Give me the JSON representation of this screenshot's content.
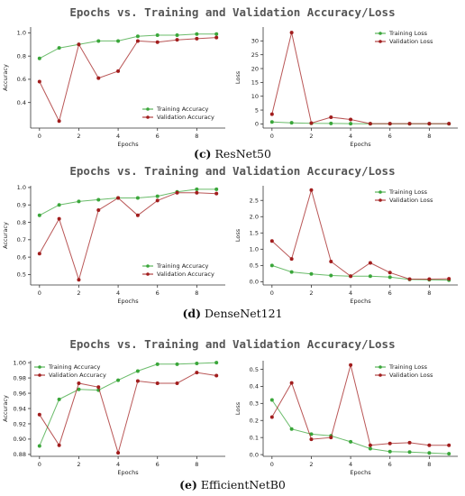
{
  "panels": [
    {
      "suptitle": "Epochs vs. Training and Validation Accuracy/Loss",
      "caption_letter": "(c)",
      "caption_text": "ResNet50"
    },
    {
      "suptitle": "Epochs vs. Training and Validation Accuracy/Loss",
      "caption_letter": "(d)",
      "caption_text": "DenseNet121"
    },
    {
      "suptitle": "Epochs vs. Training and Validation Accuracy/Loss",
      "caption_letter": "(e)",
      "caption_text": "EfficientNetB0"
    }
  ],
  "colors": {
    "training": "#3aa63a",
    "validation": "#a11d1d"
  },
  "chart_data": [
    {
      "type": "line",
      "title": "",
      "xlabel": "Epochs",
      "ylabel": "Accuracy",
      "x": [
        0,
        1,
        2,
        3,
        4,
        5,
        6,
        7,
        8,
        9
      ],
      "xlim": [
        -0.45,
        9.45
      ],
      "ylim": [
        0.18,
        1.05
      ],
      "xticks": [
        0,
        2,
        4,
        6,
        8
      ],
      "yticks": [
        0.4,
        0.6,
        0.8,
        1.0
      ],
      "ytick_decimals": 1,
      "legend_loc": "lower-right",
      "series": [
        {
          "name": "Training Accuracy",
          "key": "training",
          "values": [
            0.78,
            0.87,
            0.9,
            0.93,
            0.93,
            0.97,
            0.98,
            0.98,
            0.99,
            0.99
          ]
        },
        {
          "name": "Validation Accuracy",
          "key": "validation",
          "values": [
            0.58,
            0.24,
            0.9,
            0.61,
            0.67,
            0.93,
            0.92,
            0.94,
            0.95,
            0.96
          ]
        }
      ]
    },
    {
      "type": "line",
      "title": "",
      "xlabel": "Epochs",
      "ylabel": "Loss",
      "x": [
        0,
        1,
        2,
        3,
        4,
        5,
        6,
        7,
        8,
        9
      ],
      "xlim": [
        -0.45,
        9.45
      ],
      "ylim": [
        -1.5,
        35.0
      ],
      "xticks": [
        0,
        2,
        4,
        6,
        8
      ],
      "yticks": [
        0,
        5,
        10,
        15,
        20,
        25,
        30
      ],
      "ytick_decimals": 0,
      "legend_loc": "upper-right",
      "series": [
        {
          "name": "Training Loss",
          "key": "training",
          "values": [
            0.7,
            0.4,
            0.2,
            0.15,
            0.1,
            0.05,
            0.05,
            0.05,
            0.05,
            0.05
          ]
        },
        {
          "name": "Validation Loss",
          "key": "validation",
          "values": [
            3.5,
            33.0,
            0.3,
            2.4,
            1.6,
            0.1,
            0.1,
            0.1,
            0.1,
            0.1
          ]
        }
      ]
    },
    {
      "type": "line",
      "title": "",
      "xlabel": "Epochs",
      "ylabel": "Accuracy",
      "x": [
        0,
        1,
        2,
        3,
        4,
        5,
        6,
        7,
        8,
        9
      ],
      "xlim": [
        -0.45,
        9.45
      ],
      "ylim": [
        0.44,
        1.01
      ],
      "xticks": [
        0,
        2,
        4,
        6,
        8
      ],
      "yticks": [
        0.5,
        0.6,
        0.7,
        0.8,
        0.9,
        1.0
      ],
      "ytick_decimals": 1,
      "legend_loc": "lower-right",
      "series": [
        {
          "name": "Training Accuracy",
          "key": "training",
          "values": [
            0.84,
            0.9,
            0.92,
            0.93,
            0.94,
            0.94,
            0.95,
            0.975,
            0.99,
            0.99
          ]
        },
        {
          "name": "Validation Accuracy",
          "key": "validation",
          "values": [
            0.62,
            0.82,
            0.47,
            0.87,
            0.94,
            0.84,
            0.925,
            0.97,
            0.97,
            0.965
          ]
        }
      ]
    },
    {
      "type": "line",
      "title": "",
      "xlabel": "Epochs",
      "ylabel": "Loss",
      "x": [
        0,
        1,
        2,
        3,
        4,
        5,
        6,
        7,
        8,
        9
      ],
      "xlim": [
        -0.45,
        9.45
      ],
      "ylim": [
        -0.1,
        2.95
      ],
      "xticks": [
        0,
        2,
        4,
        6,
        8
      ],
      "yticks": [
        0.0,
        0.5,
        1.0,
        1.5,
        2.0,
        2.5
      ],
      "ytick_decimals": 1,
      "legend_loc": "upper-right",
      "series": [
        {
          "name": "Training Loss",
          "key": "training",
          "values": [
            0.5,
            0.3,
            0.24,
            0.19,
            0.17,
            0.17,
            0.14,
            0.07,
            0.06,
            0.05
          ]
        },
        {
          "name": "Validation Loss",
          "key": "validation",
          "values": [
            1.25,
            0.7,
            2.82,
            0.62,
            0.17,
            0.58,
            0.28,
            0.08,
            0.08,
            0.09
          ]
        }
      ]
    },
    {
      "type": "line",
      "title": "",
      "xlabel": "Epochs",
      "ylabel": "Accuracy",
      "x": [
        0,
        1,
        2,
        3,
        4,
        5,
        6,
        7,
        8,
        9
      ],
      "xlim": [
        -0.45,
        9.45
      ],
      "ylim": [
        0.8775,
        1.0025
      ],
      "xticks": [
        0,
        2,
        4,
        6,
        8
      ],
      "yticks": [
        0.88,
        0.9,
        0.92,
        0.94,
        0.96,
        0.98,
        1.0
      ],
      "ytick_decimals": 2,
      "legend_loc": "upper-left",
      "series": [
        {
          "name": "Training Accuracy",
          "key": "training",
          "values": [
            0.891,
            0.952,
            0.965,
            0.964,
            0.977,
            0.989,
            0.998,
            0.998,
            0.999,
            1.0
          ]
        },
        {
          "name": "Validation Accuracy",
          "key": "validation",
          "values": [
            0.932,
            0.892,
            0.973,
            0.968,
            0.882,
            0.976,
            0.973,
            0.973,
            0.987,
            0.983
          ]
        }
      ]
    },
    {
      "type": "line",
      "title": "",
      "xlabel": "Epochs",
      "ylabel": "Loss",
      "x": [
        0,
        1,
        2,
        3,
        4,
        5,
        6,
        7,
        8,
        9
      ],
      "xlim": [
        -0.45,
        9.45
      ],
      "ylim": [
        -0.01,
        0.55
      ],
      "xticks": [
        0,
        2,
        4,
        6,
        8
      ],
      "yticks": [
        0.0,
        0.1,
        0.2,
        0.3,
        0.4,
        0.5
      ],
      "ytick_decimals": 1,
      "legend_loc": "upper-right",
      "series": [
        {
          "name": "Training Loss",
          "key": "training",
          "values": [
            0.32,
            0.15,
            0.12,
            0.11,
            0.075,
            0.035,
            0.018,
            0.015,
            0.01,
            0.005
          ]
        },
        {
          "name": "Validation Loss",
          "key": "validation",
          "values": [
            0.22,
            0.42,
            0.09,
            0.1,
            0.525,
            0.055,
            0.065,
            0.07,
            0.055,
            0.055
          ]
        }
      ]
    }
  ]
}
